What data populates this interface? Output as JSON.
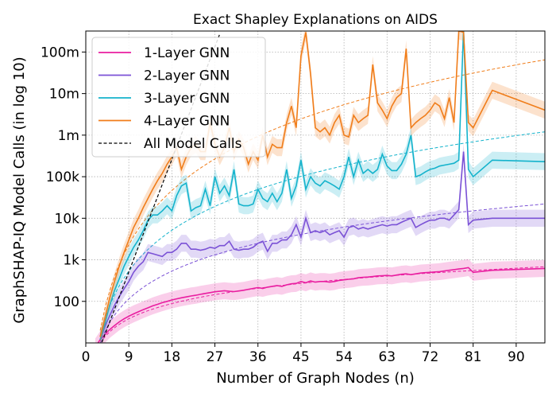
{
  "chart_data": {
    "type": "line",
    "title": "Exact Shapley Explanations on AIDS",
    "xlabel": "Number of Graph Nodes (n)",
    "ylabel": "GraphSHAP-IQ Model Calls (in log 10)",
    "y_scale": "log10",
    "xlim": [
      0,
      96
    ],
    "ylim": [
      10,
      320000000
    ],
    "x_ticks": [
      0,
      9,
      18,
      27,
      36,
      45,
      54,
      63,
      72,
      81,
      90
    ],
    "y_ticks": [
      {
        "value": 100,
        "label": "100"
      },
      {
        "value": 1000,
        "label": "1k"
      },
      {
        "value": 10000,
        "label": "10k"
      },
      {
        "value": 100000,
        "label": "100k"
      },
      {
        "value": 1000000,
        "label": "1m"
      },
      {
        "value": 10000000,
        "label": "10m"
      },
      {
        "value": 100000000,
        "label": "100m"
      }
    ],
    "grid": true,
    "grid_style": "dotted",
    "legend_position": "top-left",
    "series": [
      {
        "name": "1-Layer GNN",
        "color": "#e91ea0",
        "x": [
          2,
          3,
          4,
          5,
          6,
          7,
          8,
          9,
          10,
          11,
          12,
          13,
          14,
          15,
          16,
          17,
          18,
          19,
          20,
          21,
          22,
          23,
          24,
          25,
          26,
          27,
          28,
          29,
          30,
          31,
          32,
          33,
          34,
          35,
          36,
          37,
          38,
          39,
          40,
          41,
          42,
          43,
          44,
          45,
          46,
          47,
          48,
          49,
          50,
          51,
          52,
          53,
          54,
          55,
          56,
          57,
          58,
          59,
          60,
          61,
          62,
          63,
          64,
          65,
          66,
          67,
          68,
          69,
          70,
          71,
          72,
          73,
          74,
          75,
          76,
          77,
          78,
          79,
          80,
          81,
          85,
          96
        ],
        "y": [
          8,
          12,
          16,
          21,
          26,
          32,
          38,
          44,
          50,
          56,
          63,
          70,
          78,
          85,
          93,
          100,
          108,
          115,
          122,
          128,
          135,
          140,
          148,
          155,
          162,
          170,
          175,
          180,
          175,
          172,
          178,
          185,
          195,
          205,
          215,
          205,
          220,
          230,
          240,
          230,
          250,
          265,
          270,
          300,
          280,
          310,
          290,
          300,
          300,
          290,
          300,
          320,
          330,
          340,
          350,
          370,
          380,
          385,
          395,
          410,
          415,
          420,
          410,
          430,
          450,
          460,
          440,
          460,
          480,
          490,
          500,
          510,
          520,
          540,
          560,
          580,
          600,
          620,
          650,
          500,
          560,
          620
        ],
        "trend": {
          "x": [
            3,
            96
          ],
          "y": [
            10,
            680
          ]
        }
      },
      {
        "name": "2-Layer GNN",
        "color": "#7b52d6",
        "x": [
          3,
          4,
          5,
          6,
          7,
          8,
          9,
          10,
          11,
          12,
          13,
          14,
          15,
          16,
          17,
          18,
          19,
          20,
          21,
          22,
          23,
          24,
          25,
          26,
          27,
          28,
          29,
          30,
          31,
          32,
          33,
          34,
          35,
          36,
          37,
          38,
          39,
          40,
          41,
          42,
          43,
          44,
          45,
          46,
          47,
          48,
          49,
          50,
          51,
          52,
          53,
          54,
          55,
          56,
          57,
          58,
          59,
          60,
          61,
          62,
          63,
          64,
          65,
          66,
          67,
          68,
          69,
          70,
          71,
          72,
          73,
          74,
          75,
          76,
          77,
          78,
          79,
          80,
          81,
          85,
          96
        ],
        "y": [
          12,
          25,
          45,
          80,
          130,
          200,
          300,
          500,
          700,
          900,
          1500,
          1400,
          1300,
          1200,
          1500,
          1500,
          1800,
          2500,
          2500,
          1800,
          1800,
          1700,
          1800,
          2000,
          1900,
          2200,
          2200,
          2800,
          1800,
          1700,
          1800,
          1800,
          2000,
          2500,
          2800,
          1600,
          2500,
          2500,
          3000,
          3000,
          4000,
          7000,
          3500,
          10000,
          4500,
          5000,
          4500,
          5000,
          4000,
          4500,
          5000,
          3500,
          6000,
          6500,
          5500,
          6000,
          5500,
          6000,
          6500,
          7000,
          6500,
          7000,
          7000,
          8000,
          9000,
          10000,
          6000,
          7000,
          8000,
          9000,
          9000,
          10000,
          10000,
          9000,
          12000,
          16000,
          400000,
          7000,
          9000,
          10000,
          10000
        ],
        "trend": {
          "x": [
            3,
            96
          ],
          "y": [
            10,
            22000
          ]
        }
      },
      {
        "name": "3-Layer GNN",
        "color": "#14b3cc",
        "x": [
          3,
          4,
          5,
          6,
          7,
          8,
          9,
          10,
          11,
          12,
          13,
          14,
          15,
          16,
          17,
          18,
          19,
          20,
          21,
          22,
          23,
          24,
          25,
          26,
          27,
          28,
          29,
          30,
          31,
          32,
          33,
          34,
          35,
          36,
          37,
          38,
          39,
          40,
          41,
          42,
          43,
          44,
          45,
          46,
          47,
          48,
          49,
          50,
          51,
          52,
          53,
          54,
          55,
          56,
          57,
          58,
          59,
          60,
          61,
          62,
          63,
          64,
          65,
          66,
          67,
          68,
          69,
          70,
          71,
          72,
          73,
          74,
          75,
          76,
          77,
          78,
          79,
          80,
          81,
          85,
          96
        ],
        "y": [
          12,
          30,
          80,
          180,
          350,
          700,
          1200,
          2000,
          3000,
          5000,
          9000,
          12000,
          12000,
          15000,
          20000,
          15000,
          35000,
          60000,
          70000,
          15000,
          18000,
          20000,
          50000,
          20000,
          100000,
          40000,
          60000,
          35000,
          150000,
          22000,
          20000,
          20000,
          22000,
          50000,
          30000,
          25000,
          40000,
          25000,
          40000,
          150000,
          30000,
          60000,
          250000,
          50000,
          100000,
          70000,
          60000,
          80000,
          70000,
          60000,
          50000,
          100000,
          300000,
          100000,
          250000,
          120000,
          150000,
          120000,
          150000,
          350000,
          180000,
          140000,
          140000,
          200000,
          350000,
          1000000,
          100000,
          110000,
          130000,
          150000,
          160000,
          180000,
          190000,
          200000,
          210000,
          250000,
          350000000,
          150000,
          100000,
          250000,
          230000
        ],
        "trend": {
          "x": [
            3,
            96
          ],
          "y": [
            15,
            1200000
          ]
        }
      },
      {
        "name": "4-Layer GNN",
        "color": "#f07d1a",
        "x": [
          3,
          4,
          5,
          6,
          7,
          8,
          9,
          10,
          11,
          12,
          13,
          14,
          15,
          16,
          17,
          18,
          19,
          20,
          21,
          22,
          23,
          24,
          25,
          26,
          27,
          28,
          29,
          30,
          31,
          32,
          33,
          34,
          35,
          36,
          37,
          38,
          39,
          40,
          41,
          42,
          43,
          44,
          45,
          46,
          47,
          48,
          49,
          50,
          51,
          52,
          53,
          54,
          55,
          56,
          57,
          58,
          59,
          60,
          61,
          62,
          63,
          64,
          65,
          66,
          67,
          68,
          69,
          70,
          71,
          72,
          73,
          74,
          75,
          76,
          77,
          78,
          79,
          80,
          81,
          85,
          96
        ],
        "y": [
          14,
          40,
          120,
          300,
          700,
          1500,
          3000,
          6000,
          10000,
          18000,
          30000,
          50000,
          80000,
          120000,
          200000,
          300000,
          500000,
          150000,
          300000,
          500000,
          600000,
          400000,
          400000,
          2000000,
          600000,
          300000,
          500000,
          1500000,
          400000,
          800000,
          500000,
          200000,
          400000,
          250000,
          1000000,
          300000,
          600000,
          500000,
          500000,
          2000000,
          5000000,
          1500000,
          80000000,
          300000000,
          30000000,
          1500000,
          1200000,
          1500000,
          1000000,
          2000000,
          3000000,
          1000000,
          900000,
          3000000,
          2000000,
          2500000,
          3000000,
          50000000,
          6000000,
          4000000,
          2500000,
          5000000,
          8000000,
          10000000,
          120000000,
          1500000,
          2000000,
          2500000,
          3000000,
          4000000,
          6000000,
          5000000,
          2500000,
          8000000,
          2000000,
          320000000,
          300000000,
          2000000,
          1500000,
          12000000,
          4000000
        ],
        "trend": {
          "x": [
            3,
            96
          ],
          "y": [
            20,
            65000000
          ]
        }
      },
      {
        "name": "All Model Calls",
        "color": "#000000",
        "dashed": true,
        "x": [
          3,
          5,
          8,
          11,
          14,
          17,
          20,
          23,
          26,
          28
        ],
        "y": [
          8,
          32,
          256,
          2048,
          16384,
          131072,
          1048576,
          8388608,
          67108864,
          268435456
        ]
      }
    ]
  }
}
